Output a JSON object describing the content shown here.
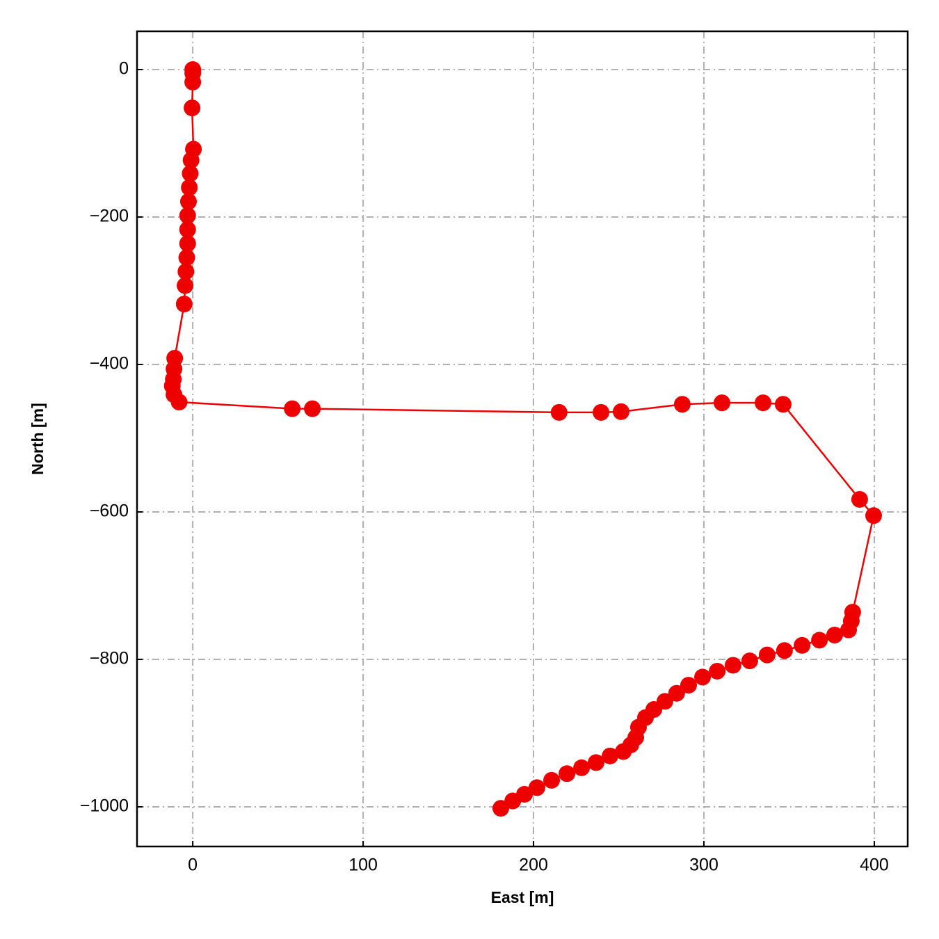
{
  "chart_data": {
    "type": "line",
    "xlabel": "East [m]",
    "ylabel": "North [m]",
    "x": [
      0,
      0,
      0,
      -0.4,
      0.4,
      -1,
      -1.5,
      -2,
      -2.5,
      -3,
      -3,
      -3,
      -3.5,
      -4,
      -4.5,
      -5,
      -10.6,
      -11,
      -11.4,
      -12,
      -11,
      -8,
      58.4,
      70.2,
      215,
      239.6,
      251.4,
      287.3,
      310.6,
      334.7,
      346.5,
      391.4,
      399.6,
      387.3,
      386.5,
      384.9,
      376.7,
      367.8,
      357.6,
      347.3,
      337.1,
      326.9,
      317.1,
      307.8,
      299.2,
      291,
      284,
      277.1,
      270.6,
      265.7,
      261.6,
      260,
      257.1,
      252.7,
      244.9,
      236.7,
      228.2,
      219.6,
      210.6,
      202,
      194.7,
      187.8,
      180.8
    ],
    "values": [
      0,
      -5,
      -17,
      -52,
      -108,
      -123,
      -141,
      -160,
      -179,
      -198,
      -217,
      -236,
      -255,
      -274,
      -293,
      -318,
      -391.5,
      -406,
      -420,
      -429,
      -441,
      -451,
      -460,
      -460,
      -465,
      -465,
      -464,
      -454,
      -452,
      -452,
      -454,
      -583,
      -605,
      -736,
      -748,
      -760,
      -767,
      -774,
      -781,
      -788,
      -794,
      -802,
      -808,
      -816,
      -824,
      -835,
      -846,
      -857,
      -868,
      -879,
      -892,
      -906,
      -916,
      -925,
      -931,
      -940,
      -947,
      -955,
      -964,
      -974,
      -983,
      -992,
      -1002
    ],
    "color": "#ee0000",
    "markers": true,
    "xlim": [
      -32.7,
      419.6
    ],
    "ylim": [
      -1053.8,
      51.9
    ],
    "xticks": [
      0,
      100,
      200,
      300,
      400
    ],
    "yticks": [
      0,
      {
        "value": -200,
        "label": "−200"
      },
      {
        "value": -400,
        "label": "−400"
      },
      {
        "value": -600,
        "label": "−600"
      },
      {
        "value": -800,
        "label": "−800"
      },
      {
        "value": -1000,
        "label": "−1000"
      }
    ],
    "grid": true
  }
}
